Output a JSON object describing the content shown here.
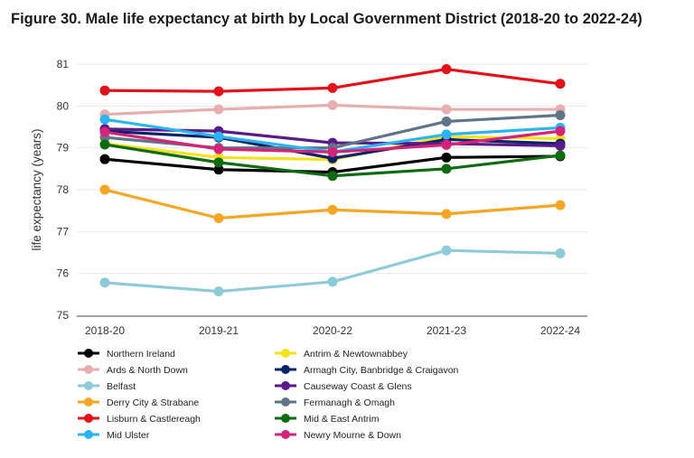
{
  "chart_data": {
    "type": "line",
    "title": "Figure 30. Male life expectancy at birth by Local Government District (2018-20 to 2022-24)",
    "xlabel": "",
    "ylabel": "life expectancy (years)",
    "categories": [
      "2018-20",
      "2019-21",
      "2020-22",
      "2021-23",
      "2022-24"
    ],
    "yticks": [
      75,
      76,
      77,
      78,
      79,
      80,
      81
    ],
    "ylim": [
      75,
      81.2
    ],
    "grid": true,
    "legend_position": "bottom",
    "series": [
      {
        "name": "Northern Ireland",
        "color": "#000000",
        "values": [
          78.73,
          78.48,
          78.42,
          78.77,
          78.8
        ]
      },
      {
        "name": "Antrim & Newtownabbey",
        "color": "#f3e21c",
        "values": [
          79.1,
          78.77,
          78.72,
          79.27,
          79.22
        ]
      },
      {
        "name": "Ards & North Down",
        "color": "#e6aeae",
        "values": [
          79.8,
          79.92,
          80.02,
          79.92,
          79.92
        ]
      },
      {
        "name": "Armagh City, Banbridge & Craigavon",
        "color": "#0a2366",
        "values": [
          79.4,
          79.25,
          78.75,
          79.2,
          79.1
        ]
      },
      {
        "name": "Belfast",
        "color": "#8ecbd8",
        "values": [
          75.78,
          75.57,
          75.8,
          76.55,
          76.48
        ]
      },
      {
        "name": "Causeway Coast & Glens",
        "color": "#5a1a8a",
        "values": [
          79.45,
          79.4,
          79.12,
          79.1,
          79.05
        ]
      },
      {
        "name": "Derry City & Strabane",
        "color": "#f5a623",
        "values": [
          78.0,
          77.32,
          77.52,
          77.42,
          77.63
        ]
      },
      {
        "name": "Fermanagh & Omagh",
        "color": "#5f7587",
        "values": [
          79.25,
          79.0,
          79.0,
          79.63,
          79.78
        ]
      },
      {
        "name": "Lisburn & Castlereagh",
        "color": "#e3121a",
        "values": [
          80.37,
          80.35,
          80.43,
          80.88,
          80.53
        ]
      },
      {
        "name": "Mid & East Antrim",
        "color": "#0f6b12",
        "values": [
          79.08,
          78.65,
          78.33,
          78.5,
          78.82
        ]
      },
      {
        "name": "Mid Ulster",
        "color": "#2bb4f0",
        "values": [
          79.68,
          79.27,
          78.9,
          79.32,
          79.48
        ]
      },
      {
        "name": "Newry Mourne & Down",
        "color": "#d6237a",
        "values": [
          79.38,
          78.97,
          78.9,
          79.07,
          79.4
        ]
      }
    ]
  }
}
